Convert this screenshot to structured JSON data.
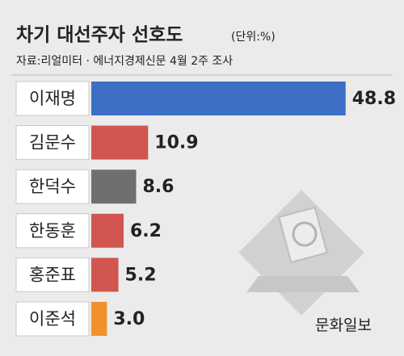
{
  "chart_data": {
    "type": "bar",
    "orientation": "horizontal",
    "title": "차기 대선주자 선호도",
    "unit": "(단위:%)",
    "source": "자료:리얼미터 · 에너지경제신문 4월 2주 조사",
    "credit": "문화일보",
    "categories": [
      "이재명",
      "김문수",
      "한덕수",
      "한동훈",
      "홍준표",
      "이준석"
    ],
    "values": [
      48.8,
      10.9,
      8.6,
      6.2,
      5.2,
      3.0
    ],
    "value_labels": [
      "48.8",
      "10.9",
      "8.6",
      "6.2",
      "5.2",
      "3.0"
    ],
    "colors": [
      "#3d6fc6",
      "#d0564f",
      "#6f6f6f",
      "#d0564f",
      "#d0564f",
      "#f0912c"
    ]
  }
}
